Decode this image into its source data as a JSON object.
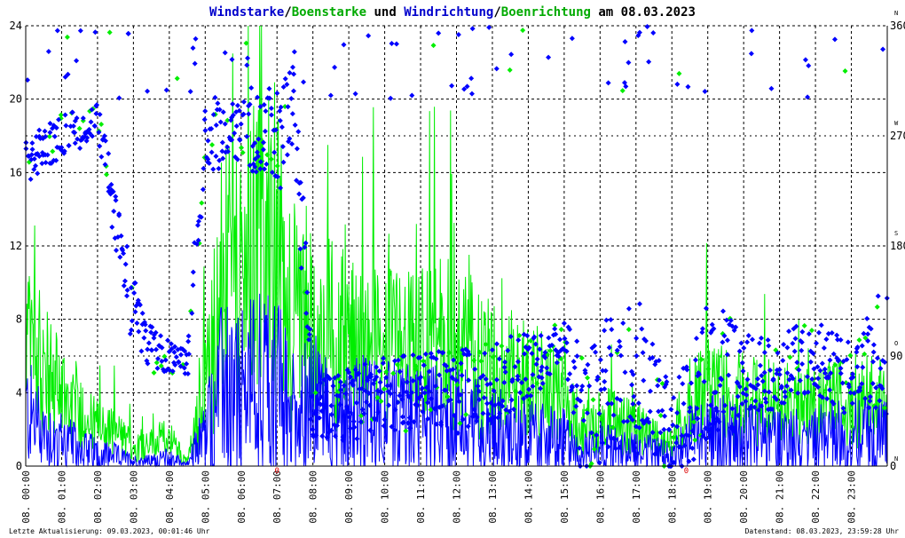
{
  "chart_data": {
    "type": "line",
    "title_parts": [
      {
        "text": "Windstarke",
        "color": "#0000cc"
      },
      {
        "text": "/",
        "color": "#000000"
      },
      {
        "text": "Boenstarke",
        "color": "#00aa00"
      },
      {
        "text": " und ",
        "color": "#000000"
      },
      {
        "text": "Windrichtung",
        "color": "#0000cc"
      },
      {
        "text": "/",
        "color": "#000000"
      },
      {
        "text": "Boenrichtung",
        "color": "#00aa00"
      },
      {
        "text": " am 08.03.2023",
        "color": "#000000"
      }
    ],
    "x_ticks": [
      "08. 00:00",
      "08. 01:00",
      "08. 02:00",
      "08. 03:00",
      "08. 04:00",
      "08. 05:00",
      "08. 06:00",
      "08. 07:00",
      "08. 08:00",
      "08. 09:00",
      "08. 10:00",
      "08. 11:00",
      "08. 12:00",
      "08. 13:00",
      "08. 14:00",
      "08. 15:00",
      "08. 16:00",
      "08. 17:00",
      "08. 18:00",
      "08. 19:00",
      "08. 20:00",
      "08. 21:00",
      "08. 22:00",
      "08. 23:00"
    ],
    "xlim_hours": [
      0,
      24
    ],
    "ylim_left": [
      0,
      24
    ],
    "y_ticks_left": [
      "0",
      "4",
      "8",
      "12",
      "16",
      "20",
      "24"
    ],
    "ylim_right": [
      0,
      360
    ],
    "y_ticks_right": [
      "0",
      "90",
      "180",
      "270",
      "360"
    ],
    "direction_letters": [
      "N",
      "O",
      "S",
      "W",
      "N"
    ],
    "zero_markers": [
      {
        "hour": 7.0,
        "label": "0"
      },
      {
        "hour": 18.4,
        "label": "0"
      }
    ],
    "grid": true,
    "colors": {
      "wind": "#0000ff",
      "gust": "#00ee00",
      "grid": "#000000",
      "title_blue": "#0000cc",
      "title_green": "#00aa00",
      "marker_red": "#dd0000"
    },
    "footer_left": "Letzte Aktualisierung: 09.03.2023, 00:01:46 Uhr",
    "footer_right": "Datenstand: 08.03.2023, 23:59:28 Uhr",
    "speed_profile": [
      {
        "h": 0.0,
        "wind": 3.0,
        "gust": 6.5
      },
      {
        "h": 0.5,
        "wind": 2.0,
        "gust": 5.0
      },
      {
        "h": 1.0,
        "wind": 1.5,
        "gust": 4.0
      },
      {
        "h": 1.5,
        "wind": 1.0,
        "gust": 3.0
      },
      {
        "h": 2.0,
        "wind": 0.8,
        "gust": 2.0
      },
      {
        "h": 2.5,
        "wind": 0.6,
        "gust": 1.8
      },
      {
        "h": 3.0,
        "wind": 0.3,
        "gust": 1.0
      },
      {
        "h": 3.5,
        "wind": 0.3,
        "gust": 1.2
      },
      {
        "h": 4.0,
        "wind": 0.5,
        "gust": 1.5
      },
      {
        "h": 4.5,
        "wind": 0.1,
        "gust": 0.2
      },
      {
        "h": 5.0,
        "wind": 2.0,
        "gust": 4.0
      },
      {
        "h": 5.5,
        "wind": 4.5,
        "gust": 10.0
      },
      {
        "h": 6.0,
        "wind": 4.0,
        "gust": 9.0
      },
      {
        "h": 6.5,
        "wind": 5.0,
        "gust": 12.0
      },
      {
        "h": 7.0,
        "wind": 4.5,
        "gust": 11.0
      },
      {
        "h": 7.5,
        "wind": 3.0,
        "gust": 8.0
      },
      {
        "h": 8.0,
        "wind": 3.5,
        "gust": 7.0
      },
      {
        "h": 8.5,
        "wind": 3.0,
        "gust": 7.0
      },
      {
        "h": 9.0,
        "wind": 3.0,
        "gust": 6.5
      },
      {
        "h": 10.0,
        "wind": 2.8,
        "gust": 6.0
      },
      {
        "h": 11.0,
        "wind": 2.7,
        "gust": 6.0
      },
      {
        "h": 12.0,
        "wind": 2.7,
        "gust": 6.5
      },
      {
        "h": 13.0,
        "wind": 2.2,
        "gust": 5.0
      },
      {
        "h": 14.0,
        "wind": 1.8,
        "gust": 4.5
      },
      {
        "h": 15.0,
        "wind": 1.5,
        "gust": 3.5
      },
      {
        "h": 15.5,
        "wind": 0.8,
        "gust": 2.0
      },
      {
        "h": 16.0,
        "wind": 1.2,
        "gust": 2.5
      },
      {
        "h": 17.0,
        "wind": 1.0,
        "gust": 2.0
      },
      {
        "h": 18.0,
        "wind": 0.6,
        "gust": 1.2
      },
      {
        "h": 18.5,
        "wind": 1.5,
        "gust": 3.0
      },
      {
        "h": 19.0,
        "wind": 2.0,
        "gust": 4.0
      },
      {
        "h": 20.0,
        "wind": 1.8,
        "gust": 3.5
      },
      {
        "h": 21.0,
        "wind": 1.6,
        "gust": 3.2
      },
      {
        "h": 22.0,
        "wind": 1.6,
        "gust": 3.0
      },
      {
        "h": 23.0,
        "wind": 1.8,
        "gust": 3.5
      },
      {
        "h": 24.0,
        "wind": 1.8,
        "gust": 3.5
      }
    ],
    "direction_profile": [
      {
        "h": 0.0,
        "dir": 250,
        "spread": 18
      },
      {
        "h": 1.0,
        "dir": 270,
        "spread": 18
      },
      {
        "h": 2.0,
        "dir": 282,
        "spread": 15
      },
      {
        "h": 3.0,
        "dir": 120,
        "spread": 35
      },
      {
        "h": 3.5,
        "dir": 95,
        "spread": 20
      },
      {
        "h": 4.5,
        "dir": 85,
        "spread": 10
      },
      {
        "h": 5.0,
        "dir": 270,
        "spread": 30
      },
      {
        "h": 6.0,
        "dir": 272,
        "spread": 25
      },
      {
        "h": 7.0,
        "dir": 268,
        "spread": 45
      },
      {
        "h": 7.5,
        "dir": 300,
        "spread": 60
      },
      {
        "h": 8.0,
        "dir": 40,
        "spread": 30
      },
      {
        "h": 10.0,
        "dir": 60,
        "spread": 30
      },
      {
        "h": 12.0,
        "dir": 60,
        "spread": 35
      },
      {
        "h": 14.0,
        "dir": 80,
        "spread": 30
      },
      {
        "h": 15.0,
        "dir": 105,
        "spread": 15
      },
      {
        "h": 15.5,
        "dir": 40,
        "spread": 60
      },
      {
        "h": 17.0,
        "dir": 90,
        "spread": 60
      },
      {
        "h": 18.0,
        "dir": 20,
        "spread": 40
      },
      {
        "h": 19.0,
        "dir": 80,
        "spread": 60
      },
      {
        "h": 20.0,
        "dir": 70,
        "spread": 40
      },
      {
        "h": 21.0,
        "dir": 80,
        "spread": 30
      },
      {
        "h": 22.0,
        "dir": 90,
        "spread": 30
      },
      {
        "h": 23.0,
        "dir": 70,
        "spread": 30
      },
      {
        "h": 24.0,
        "dir": 100,
        "spread": 60
      }
    ]
  }
}
